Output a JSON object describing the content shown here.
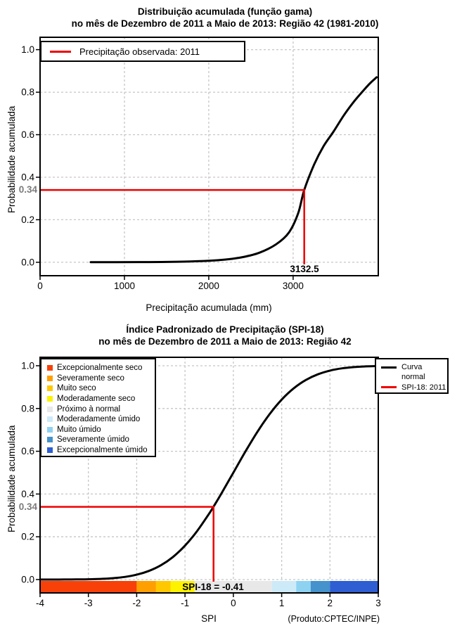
{
  "page": {
    "background": "#ffffff"
  },
  "chart_data": [
    {
      "id": "gamma-cdf",
      "type": "line",
      "title": "Distribuição acumulada (função gama)",
      "subtitle": "no mês de Dezembro de 2011 a Maio de 2013: Região 42 (1981-2010)",
      "xlabel": "Precipitação acumulada (mm)",
      "ylabel": "Probabilidade acumulada",
      "xlim": [
        0,
        4010
      ],
      "ylim": [
        0,
        1
      ],
      "grid": true,
      "legend_position": "top-left",
      "x_ticks": [
        0,
        1000,
        2000,
        3000
      ],
      "x_tick_labels": [
        "0",
        "1000",
        "2000",
        "3000"
      ],
      "y_ticks": [
        0,
        0.2,
        0.4,
        0.6,
        0.8,
        1
      ],
      "y_tick_labels": [
        "0.0",
        "0.2",
        "0.4",
        "0.6",
        "0.8",
        "1.0"
      ],
      "curve": {
        "name": "Distribuição acumulada (função gama)",
        "color": "#000000",
        "points": [
          [
            600,
            0.0002
          ],
          [
            900,
            0.0005
          ],
          [
            1300,
            0.001
          ],
          [
            1700,
            0.003
          ],
          [
            2000,
            0.007
          ],
          [
            2200,
            0.013
          ],
          [
            2400,
            0.024
          ],
          [
            2600,
            0.045
          ],
          [
            2800,
            0.085
          ],
          [
            2950,
            0.14
          ],
          [
            3060,
            0.23
          ],
          [
            3132.5,
            0.34
          ],
          [
            3250,
            0.46
          ],
          [
            3360,
            0.545
          ],
          [
            3480,
            0.615
          ],
          [
            3600,
            0.69
          ],
          [
            3720,
            0.755
          ],
          [
            3850,
            0.815
          ],
          [
            3920,
            0.845
          ],
          [
            3990,
            0.87
          ]
        ]
      },
      "legend": {
        "observed_label": "Precipitação observada: 2011"
      },
      "observed": {
        "x": 3132.5,
        "x_label": "3132.5",
        "probability": 0.34,
        "probability_label": "0.34",
        "color": "#ee0000"
      }
    },
    {
      "id": "spi-cdf",
      "type": "line",
      "title": "Índice Padronizado de Precipitação (SPI-18)",
      "subtitle": "no mês de Dezembro de 2011 a Maio de 2013: Região 42",
      "xlabel": "SPI",
      "ylabel": "Probabilidade acumulada",
      "footnote": "(Produto:CPTEC/INPE)",
      "xlim": [
        -4,
        3
      ],
      "ylim": [
        0,
        1
      ],
      "grid": true,
      "x_ticks": [
        -4,
        -3,
        -2,
        -1,
        0,
        1,
        2,
        3
      ],
      "x_tick_labels": [
        "-4",
        "-3",
        "-2",
        "-1",
        "0",
        "1",
        "2",
        "3"
      ],
      "y_ticks": [
        0,
        0.2,
        0.4,
        0.6,
        0.8,
        1
      ],
      "y_tick_labels": [
        "0.0",
        "0.2",
        "0.4",
        "0.6",
        "0.8",
        "1.0"
      ],
      "curve": {
        "name": "Curva normal",
        "color": "#000000",
        "points": [
          [
            -4,
            0.0
          ],
          [
            -3.75,
            0.0001
          ],
          [
            -3.5,
            0.0002
          ],
          [
            -3.25,
            0.0006
          ],
          [
            -3,
            0.0013
          ],
          [
            -2.75,
            0.003
          ],
          [
            -2.5,
            0.0062
          ],
          [
            -2.25,
            0.0122
          ],
          [
            -2,
            0.0228
          ],
          [
            -1.75,
            0.0401
          ],
          [
            -1.5,
            0.0668
          ],
          [
            -1.25,
            0.1056
          ],
          [
            -1,
            0.1587
          ],
          [
            -0.75,
            0.2266
          ],
          [
            -0.5,
            0.3085
          ],
          [
            -0.41,
            0.3409
          ],
          [
            -0.25,
            0.4013
          ],
          [
            0,
            0.5
          ],
          [
            0.25,
            0.5987
          ],
          [
            0.5,
            0.6915
          ],
          [
            0.75,
            0.7734
          ],
          [
            1,
            0.8413
          ],
          [
            1.25,
            0.8944
          ],
          [
            1.5,
            0.9332
          ],
          [
            1.75,
            0.9599
          ],
          [
            2,
            0.9772
          ],
          [
            2.25,
            0.9878
          ],
          [
            2.5,
            0.9938
          ],
          [
            2.75,
            0.997
          ],
          [
            3,
            0.9987
          ]
        ]
      },
      "legend_right": {
        "curve_label_lines": [
          "Curva",
          "normal"
        ],
        "observed_label": "SPI-18: 2011"
      },
      "observed": {
        "x": -0.41,
        "label": "SPI-18 = -0.41",
        "probability": 0.34,
        "probability_label": "0.34",
        "color": "#ee0000"
      },
      "categories": [
        {
          "label": "Excepcionalmente seco",
          "color": "#f74109",
          "range": [
            -4,
            -2
          ]
        },
        {
          "label": "Severamente seco",
          "color": "#ff9f00",
          "range": [
            -2,
            -1.6
          ]
        },
        {
          "label": "Muito seco",
          "color": "#ffc800",
          "range": [
            -1.6,
            -1.3
          ]
        },
        {
          "label": "Moderadamente seco",
          "color": "#fdf200",
          "range": [
            -1.3,
            -0.8
          ]
        },
        {
          "label": "Próximo à normal",
          "color": "#e8e8e8",
          "range": [
            -0.8,
            0.8
          ]
        },
        {
          "label": "Moderadamente úmido",
          "color": "#cdeaf8",
          "range": [
            0.8,
            1.3
          ]
        },
        {
          "label": "Muito úmido",
          "color": "#8ed2f2",
          "range": [
            1.3,
            1.6
          ]
        },
        {
          "label": "Severamente úmido",
          "color": "#4592cc",
          "range": [
            1.6,
            2
          ]
        },
        {
          "label": "Excepcionalmente úmido",
          "color": "#2e5ed2",
          "range": [
            2,
            3
          ]
        }
      ]
    }
  ]
}
